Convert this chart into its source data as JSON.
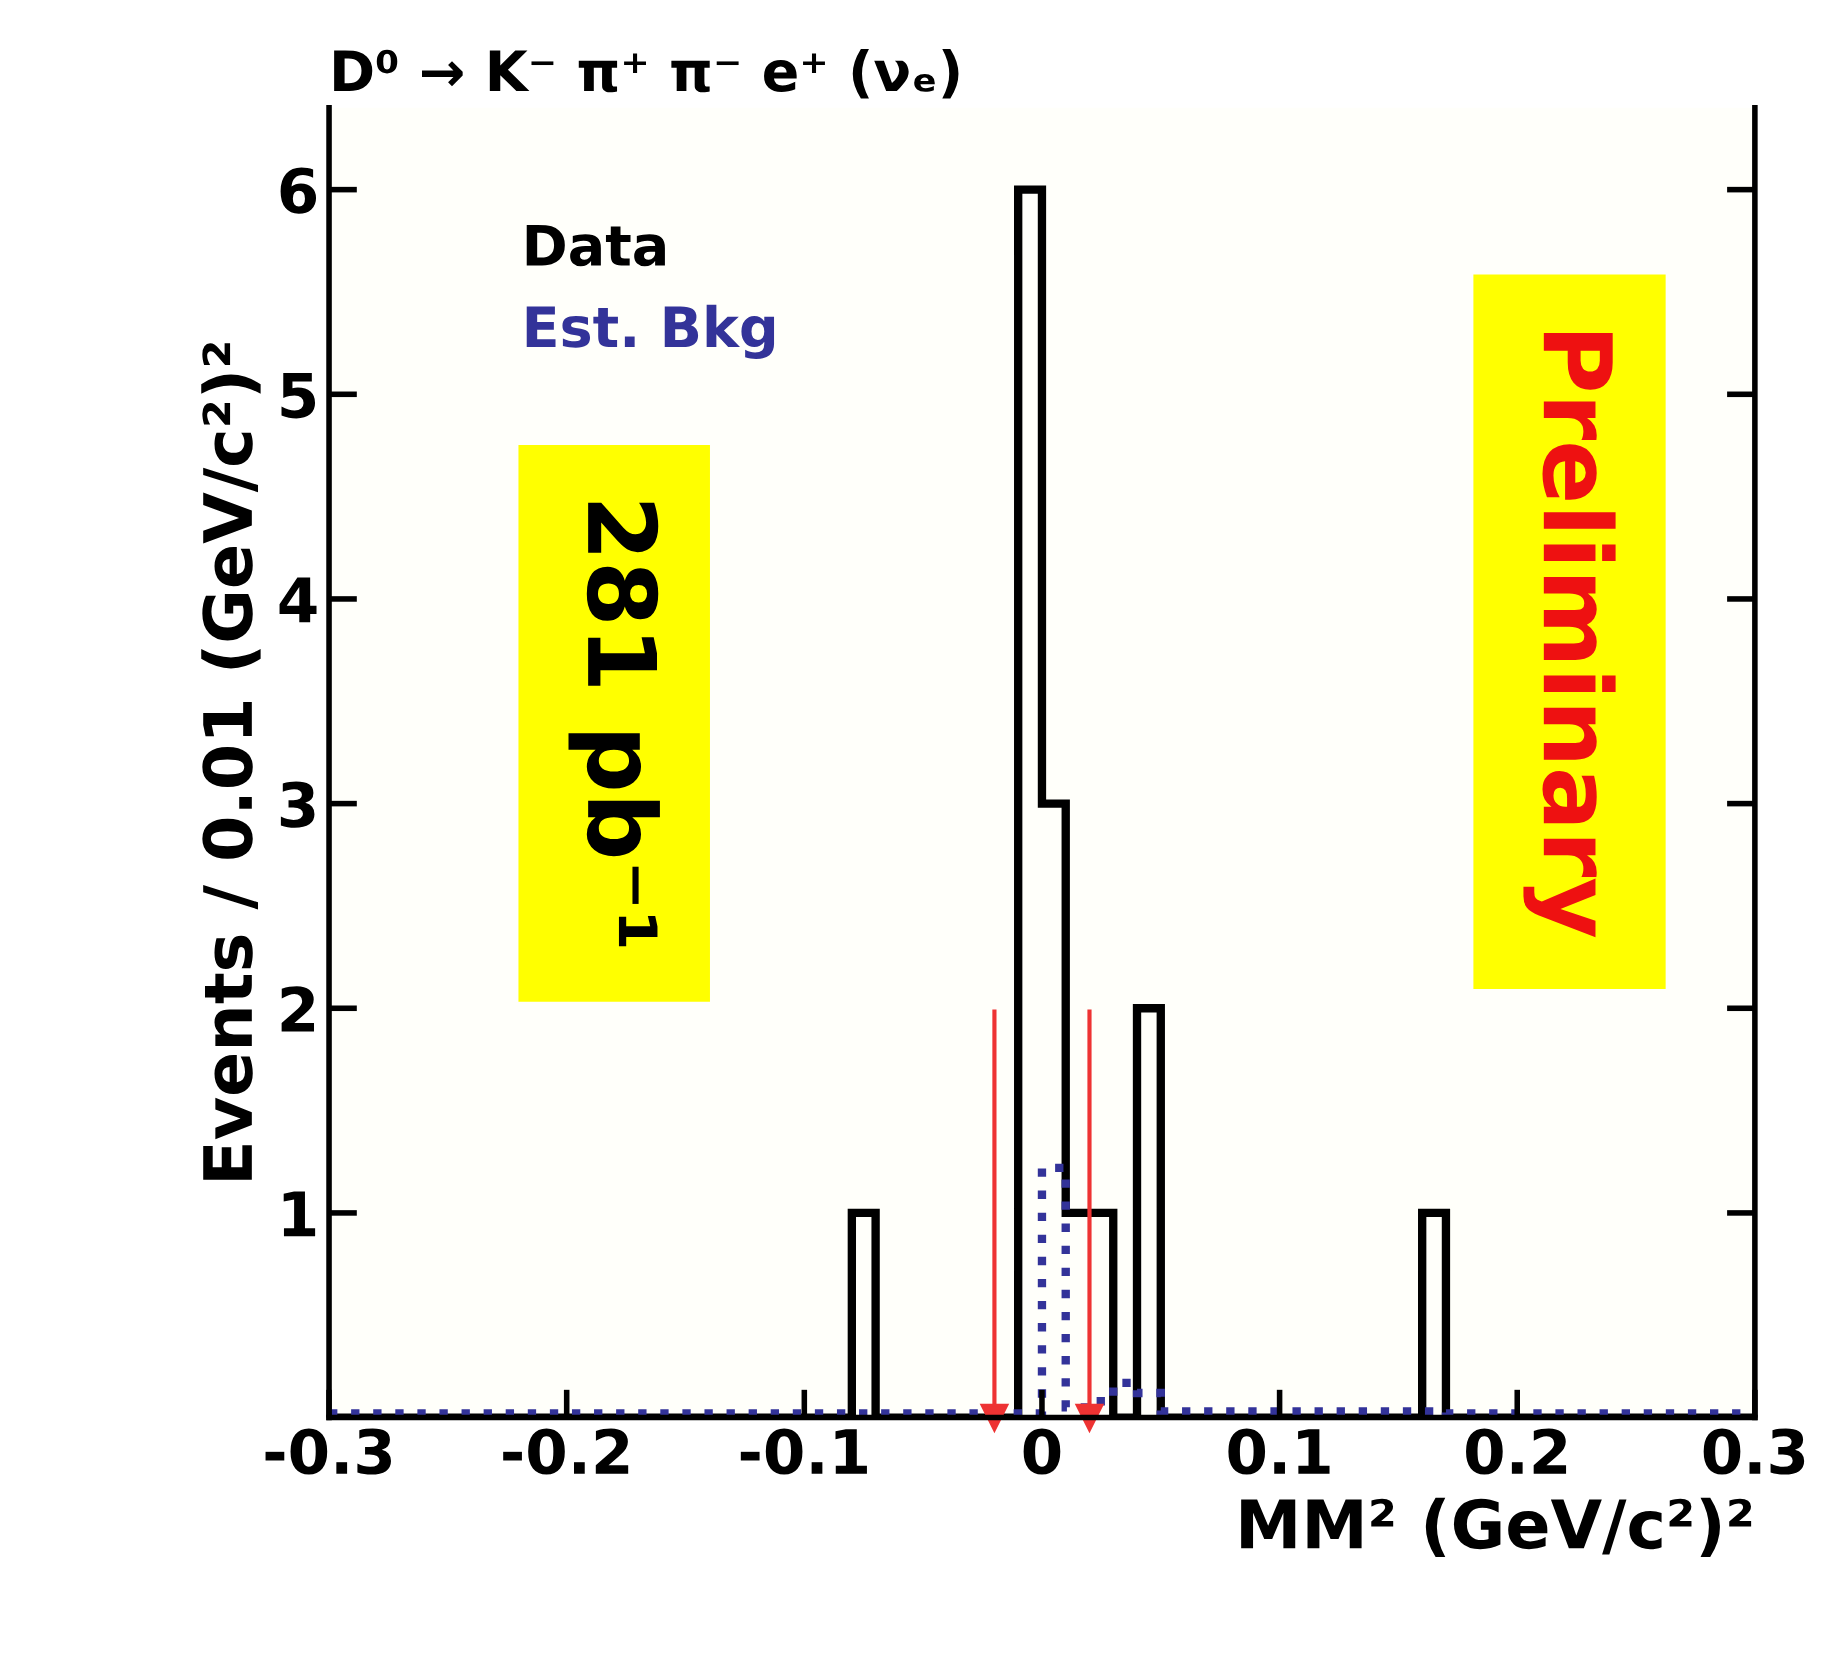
{
  "chart_data": {
    "type": "histogram",
    "title": "D⁰ → K⁻ π⁺ π⁻ e⁺ (νₑ)",
    "xlabel": "MM² (GeV/c²)²",
    "ylabel": "Events / 0.01 (GeV/c²)²",
    "bins": [
      -0.3,
      -0.29,
      -0.28,
      -0.27,
      -0.26,
      -0.25,
      -0.24,
      -0.23,
      -0.22,
      -0.21,
      -0.2,
      -0.19,
      -0.18,
      -0.17,
      -0.16,
      -0.15,
      -0.14,
      -0.13,
      -0.12,
      -0.11,
      -0.1,
      -0.09,
      -0.08,
      -0.07,
      -0.06,
      -0.05,
      -0.04,
      -0.03,
      -0.02,
      -0.01,
      0,
      0.01,
      0.02,
      0.03,
      0.04,
      0.05,
      0.06,
      0.07,
      0.08,
      0.09,
      0.1,
      0.11,
      0.12,
      0.13,
      0.14,
      0.15,
      0.16,
      0.17,
      0.18,
      0.19,
      0.2,
      0.21,
      0.22,
      0.23,
      0.24,
      0.25,
      0.26,
      0.27,
      0.28,
      0.29,
      0.3
    ],
    "series": [
      {
        "name": "Data",
        "color": "#000000",
        "line_style": "solid",
        "values": [
          0,
          0,
          0,
          0,
          0,
          0,
          0,
          0,
          0,
          0,
          0,
          0,
          0,
          0,
          0,
          0,
          0,
          0,
          0,
          0,
          0,
          0,
          1,
          0,
          0,
          0,
          0,
          0,
          0,
          6,
          3,
          1,
          1,
          0,
          2,
          0,
          0,
          0,
          0,
          0,
          0,
          0,
          0,
          0,
          0,
          0,
          1,
          0,
          0,
          0,
          0,
          0,
          0,
          0,
          0,
          0,
          0,
          0,
          0,
          0
        ]
      },
      {
        "name": "Est. Bkg",
        "color": "#333399",
        "line_style": "dotted",
        "values": [
          0.02,
          0.02,
          0.02,
          0.02,
          0.02,
          0.02,
          0.02,
          0.02,
          0.02,
          0.02,
          0.02,
          0.02,
          0.02,
          0.02,
          0.02,
          0.02,
          0.02,
          0.02,
          0.02,
          0.02,
          0.02,
          0.02,
          0.02,
          0.02,
          0.02,
          0.02,
          0.02,
          0.02,
          0.02,
          0.02,
          1.22,
          0.05,
          0.08,
          0.17,
          0.12,
          0.03,
          0.03,
          0.03,
          0.03,
          0.03,
          0.03,
          0.03,
          0.03,
          0.03,
          0.03,
          0.03,
          0.03,
          0.02,
          0.02,
          0.02,
          0.02,
          0.02,
          0.02,
          0.02,
          0.02,
          0.02,
          0.02,
          0.02,
          0.02,
          0.02
        ]
      }
    ],
    "xlim": [
      -0.3,
      0.3
    ],
    "ylim": [
      0,
      6.4
    ],
    "xticks": [
      -0.3,
      -0.2,
      -0.1,
      {
        "value": 0,
        "label": "0"
      },
      0.1,
      0.2,
      0.3
    ],
    "yticks": [
      1,
      2,
      3,
      4,
      5,
      6
    ],
    "ref_lines": [
      {
        "axis": "x",
        "value": -0.02,
        "color": "#ee3333"
      },
      {
        "axis": "x",
        "value": 0.02,
        "color": "#ee3333"
      }
    ],
    "annotations": [
      "281 pb⁻¹",
      "Preliminary"
    ],
    "legend": "top left",
    "grid": false
  }
}
